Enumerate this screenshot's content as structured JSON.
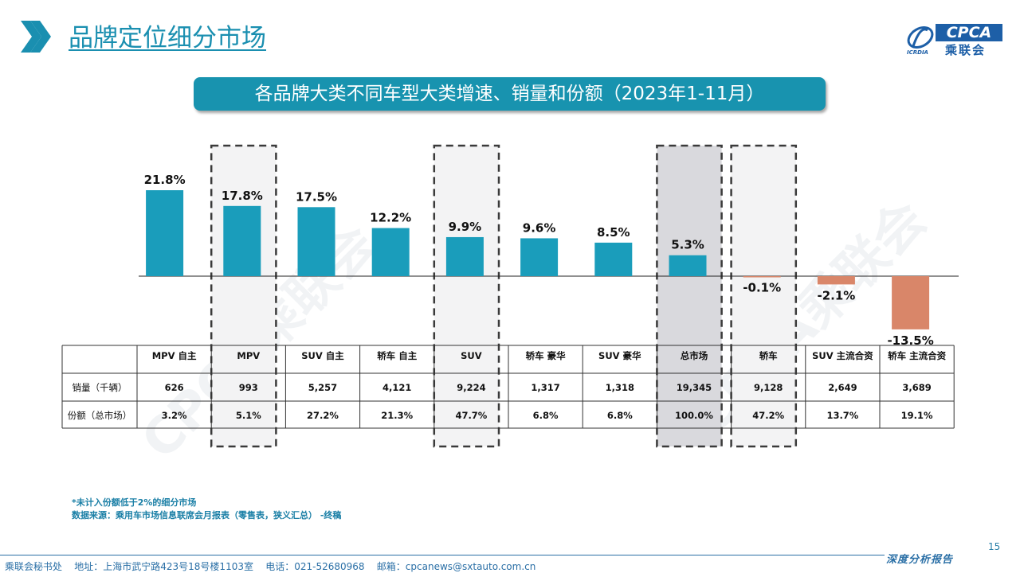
{
  "header": {
    "title": "品牌定位细分市场",
    "logo_text": "CPCA",
    "logo_cn": "乘联会",
    "logo_sub": "ICRDIA"
  },
  "banner": {
    "title": "各品牌大类不同车型大类增速、销量和份额（2023年1-11月）"
  },
  "colors": {
    "accent": "#1a9dbb",
    "positive": "#1a9dbb",
    "negative": "#d98669",
    "banner": "#1893af",
    "highlight_gray": "#d9d9dd"
  },
  "chart_data": {
    "type": "bar",
    "categories": [
      "MPV 自主",
      "MPV",
      "SUV 自主",
      "轿车 自主",
      "SUV",
      "轿车 豪华",
      "SUV 豪华",
      "总市场",
      "轿车",
      "SUV 主流合资",
      "轿车 主流合资"
    ],
    "values": [
      21.8,
      17.8,
      17.5,
      12.2,
      9.9,
      9.6,
      8.5,
      5.3,
      -0.1,
      -2.1,
      -13.5
    ],
    "value_labels": [
      "21.8%",
      "17.8%",
      "17.5%",
      "12.2%",
      "9.9%",
      "9.6%",
      "8.5%",
      "5.3%",
      "-0.1%",
      "-2.1%",
      "-13.5%"
    ],
    "unit": "%",
    "highlighted": [
      1,
      4,
      7,
      8
    ],
    "filled_highlight": [
      7
    ],
    "grid": false,
    "table": {
      "rows": [
        {
          "label": "销量（千辆）",
          "values": [
            "626",
            "993",
            "5,257",
            "4,121",
            "9,224",
            "1,317",
            "1,318",
            "19,345",
            "9,128",
            "2,649",
            "3,689"
          ]
        },
        {
          "label": "份额（总市场）",
          "values": [
            "3.2%",
            "5.1%",
            "27.2%",
            "21.3%",
            "47.7%",
            "6.8%",
            "6.8%",
            "100.0%",
            "47.2%",
            "13.7%",
            "19.1%"
          ]
        }
      ]
    }
  },
  "notes": {
    "line1": "*未计入份额低于2%的细分市场",
    "line2": "数据来源：乘用车市场信息联席会月报表（零售表，狭义汇总）  -终稿"
  },
  "page_number": "15",
  "footer": {
    "text": "乘联会秘书处    地址：上海市武宁路423号18号楼1103室    电话：021-52680968    邮箱：cpcanews@sxtauto.com.cn",
    "right": "深度分析报告"
  },
  "watermark": "CPCA乘联会"
}
